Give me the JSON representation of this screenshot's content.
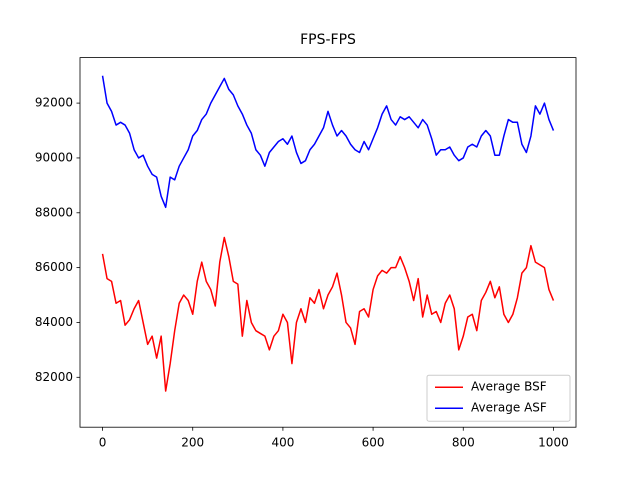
{
  "chart_data": {
    "type": "line",
    "title": "FPS-FPS",
    "x": [
      0,
      10,
      20,
      30,
      40,
      50,
      60,
      70,
      80,
      90,
      100,
      110,
      120,
      130,
      140,
      150,
      160,
      170,
      180,
      190,
      200,
      210,
      220,
      230,
      240,
      250,
      260,
      270,
      280,
      290,
      300,
      310,
      320,
      330,
      340,
      350,
      360,
      370,
      380,
      390,
      400,
      410,
      420,
      430,
      440,
      450,
      460,
      470,
      480,
      490,
      500,
      510,
      520,
      530,
      540,
      550,
      560,
      570,
      580,
      590,
      600,
      610,
      620,
      630,
      640,
      650,
      660,
      670,
      680,
      690,
      700,
      710,
      720,
      730,
      740,
      750,
      760,
      770,
      780,
      790,
      800,
      810,
      820,
      830,
      840,
      850,
      860,
      870,
      880,
      890,
      900,
      910,
      920,
      930,
      940,
      950,
      960,
      970,
      980,
      990,
      1000
    ],
    "series": [
      {
        "name": "Average BSF",
        "color": "#ff0000",
        "values": [
          86500,
          85600,
          85500,
          84700,
          84800,
          83900,
          84100,
          84500,
          84800,
          84000,
          83200,
          83500,
          82700,
          83500,
          81500,
          82500,
          83700,
          84700,
          85000,
          84800,
          84300,
          85500,
          86200,
          85500,
          85200,
          84600,
          86200,
          87100,
          86400,
          85500,
          85400,
          83500,
          84800,
          84000,
          83700,
          83600,
          83500,
          83000,
          83500,
          83700,
          84300,
          84000,
          82500,
          84000,
          84500,
          84000,
          84900,
          84700,
          85200,
          84500,
          85000,
          85300,
          85800,
          85000,
          84000,
          83800,
          83200,
          84400,
          84500,
          84200,
          85200,
          85700,
          85900,
          85800,
          86000,
          86000,
          86400,
          86000,
          85500,
          84800,
          85600,
          84200,
          85000,
          84300,
          84400,
          84000,
          84700,
          85000,
          84500,
          83000,
          83500,
          84200,
          84300,
          83700,
          84800,
          85100,
          85500,
          84900,
          85300,
          84300,
          84000,
          84300,
          84900,
          85800,
          86000,
          86800,
          86200,
          86100,
          86000,
          85200,
          84800
        ]
      },
      {
        "name": "Average ASF",
        "color": "#0000ff",
        "values": [
          93000,
          92000,
          91700,
          91200,
          91300,
          91200,
          90900,
          90300,
          90000,
          90100,
          89700,
          89400,
          89300,
          88600,
          88200,
          89300,
          89200,
          89700,
          90000,
          90300,
          90800,
          91000,
          91400,
          91600,
          92000,
          92300,
          92600,
          92900,
          92500,
          92300,
          91900,
          91600,
          91200,
          90900,
          90300,
          90100,
          89700,
          90200,
          90400,
          90600,
          90700,
          90500,
          90800,
          90200,
          89800,
          89900,
          90300,
          90500,
          90800,
          91100,
          91700,
          91200,
          90800,
          91000,
          90800,
          90500,
          90300,
          90200,
          90600,
          90300,
          90700,
          91100,
          91600,
          91900,
          91400,
          91200,
          91500,
          91400,
          91500,
          91300,
          91100,
          91400,
          91200,
          90700,
          90100,
          90300,
          90300,
          90400,
          90100,
          89900,
          90000,
          90400,
          90500,
          90400,
          90800,
          91000,
          90800,
          90100,
          90100,
          90800,
          91400,
          91300,
          91300,
          90500,
          90200,
          90800,
          91900,
          91600,
          92000,
          91400,
          91000
        ]
      }
    ],
    "xlim": [
      -50,
      1050
    ],
    "ylim": [
      80180,
      93660
    ],
    "xticks": [
      0,
      200,
      400,
      600,
      800,
      1000
    ],
    "yticks": [
      82000,
      84000,
      86000,
      88000,
      90000,
      92000
    ],
    "legend": "lower right"
  }
}
